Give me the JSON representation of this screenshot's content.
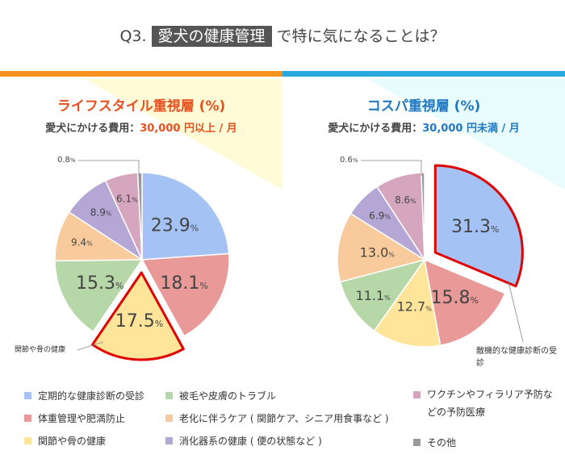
{
  "title": {
    "prefix": "Q3.",
    "highlight": "愛犬の健康管理",
    "suffix": "で特に気になることは？"
  },
  "colors": {
    "left_accent": "#f7931e",
    "right_accent": "#29a8e0",
    "left_title": "#e8501e",
    "right_title": "#1f78c1",
    "highlight_border": "#e00000"
  },
  "left": {
    "heading": "ライフスタイル重視層 (%)",
    "sub_label": "愛犬にかける費用：",
    "sub_value": "30,000 円以上 / 月",
    "annotation": "関節や骨の健康"
  },
  "right": {
    "heading": "コスパ重視層 (%)",
    "sub_label": "愛犬にかける費用：",
    "sub_value": "30,000 円未満 / 月",
    "annotation": "敵機的な健康診断の受診"
  },
  "chart_data": [
    {
      "type": "pie",
      "categories": [
        "定期的な健康診断の受診",
        "体重管理や肥満防止",
        "関節や骨の健康",
        "被毛や皮膚のトラブル",
        "老化に伴うケア ( 関節ケア、シニア用食事など )",
        "消化器系の健康 ( 便の状態など )",
        "ワクチンやフィラリア予防などの予防医療",
        "その他"
      ],
      "values": [
        23.9,
        18.1,
        17.5,
        15.3,
        9.4,
        8.9,
        6.1,
        0.8
      ],
      "highlighted": "関節や骨の健康",
      "unit": "%"
    },
    {
      "type": "pie",
      "categories": [
        "定期的な健康診断の受診",
        "体重管理や肥満防止",
        "関節や骨の健康",
        "被毛や皮膚のトラブル",
        "老化に伴うケア ( 関節ケア、シニア用食事など )",
        "消化器系の健康 ( 便の状態など )",
        "ワクチンやフィラリア予防などの予防医療",
        "その他"
      ],
      "values": [
        31.3,
        15.8,
        12.7,
        11.1,
        13.0,
        6.9,
        8.6,
        0.6
      ],
      "highlighted": "定期的な健康診断の受診",
      "unit": "%"
    }
  ],
  "series_colors": [
    "#a4c2f4",
    "#ea9999",
    "#ffe599",
    "#b6d7a8",
    "#f9cb9c",
    "#b4a7d6",
    "#d5a6bd",
    "#999999"
  ],
  "legend": [
    {
      "label": "定期的な健康診断の受診"
    },
    {
      "label": "体重管理や肥満防止"
    },
    {
      "label": "関節や骨の健康"
    },
    {
      "label": "被毛や皮膚のトラブル"
    },
    {
      "label": "老化に伴うケア ( 関節ケア、シニア用食事など )"
    },
    {
      "label": "消化器系の健康 ( 便の状態など )"
    },
    {
      "label": "ワクチンやフィラリア予防などの予防医療"
    },
    {
      "label": "その他"
    }
  ]
}
